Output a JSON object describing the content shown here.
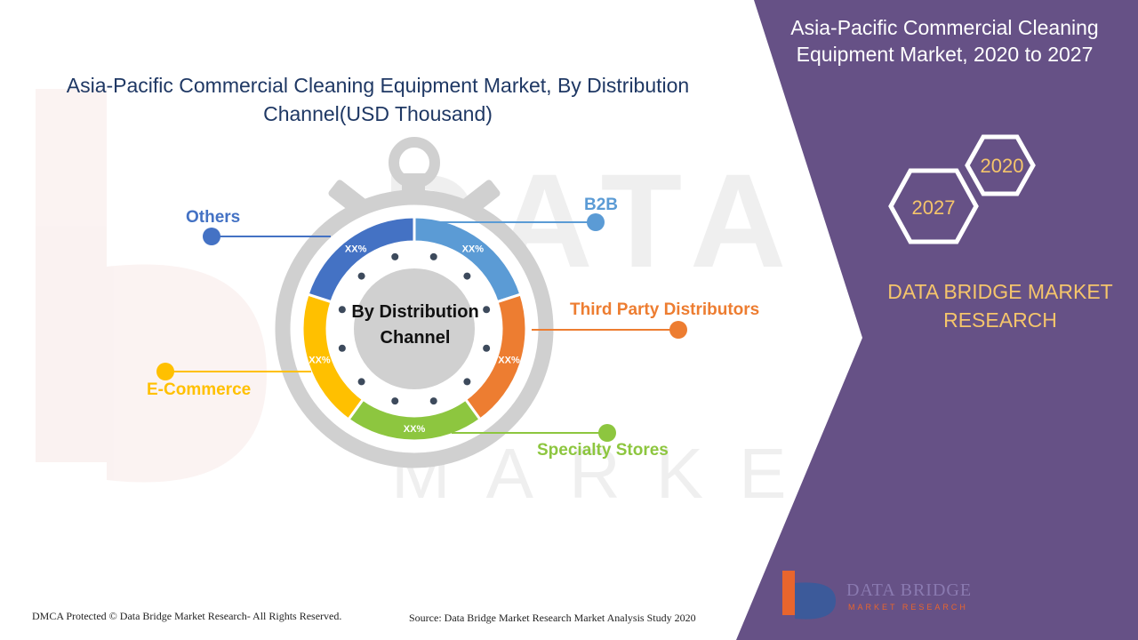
{
  "chart_title": "Asia-Pacific Commercial Cleaning Equipment Market, By Distribution Channel(USD Thousand)",
  "panel_title": "Asia-Pacific Commercial Cleaning Equipment Market, 2020 to 2027",
  "years": {
    "start": "2020",
    "end": "2027"
  },
  "brand_name": "DATA BRIDGE MARKET RESEARCH",
  "logo_text": {
    "line1": "DATA BRIDGE",
    "line2": "MARKET RESEARCH"
  },
  "footer": {
    "copyright": "DMCA Protected © Data Bridge Market Research- All Rights Reserved.",
    "source": "Source: Data Bridge Market Research Market Analysis Study 2020"
  },
  "colors": {
    "panel": "#665186",
    "title": "#1f3864",
    "brand": "#f5c56b",
    "watch": "#d0d0d0"
  },
  "chart_data": {
    "type": "pie",
    "title": "Asia-Pacific Commercial Cleaning Equipment Market, By Distribution Channel(USD Thousand)",
    "center_label": "By Distribution Channel",
    "center_lines": [
      "By Distribution",
      "Channel"
    ],
    "slices": [
      {
        "name": "B2B",
        "label": "XX%",
        "color": "#5b9bd5"
      },
      {
        "name": "Third Party Distributors",
        "label": "XX%",
        "color": "#ed7d31"
      },
      {
        "name": "Specialty Stores",
        "label": "XX%",
        "color": "#8dc63f"
      },
      {
        "name": "E-Commerce",
        "label": "XX%",
        "color": "#ffc000"
      },
      {
        "name": "Others",
        "label": "XX%",
        "color": "#4472c4"
      }
    ]
  }
}
